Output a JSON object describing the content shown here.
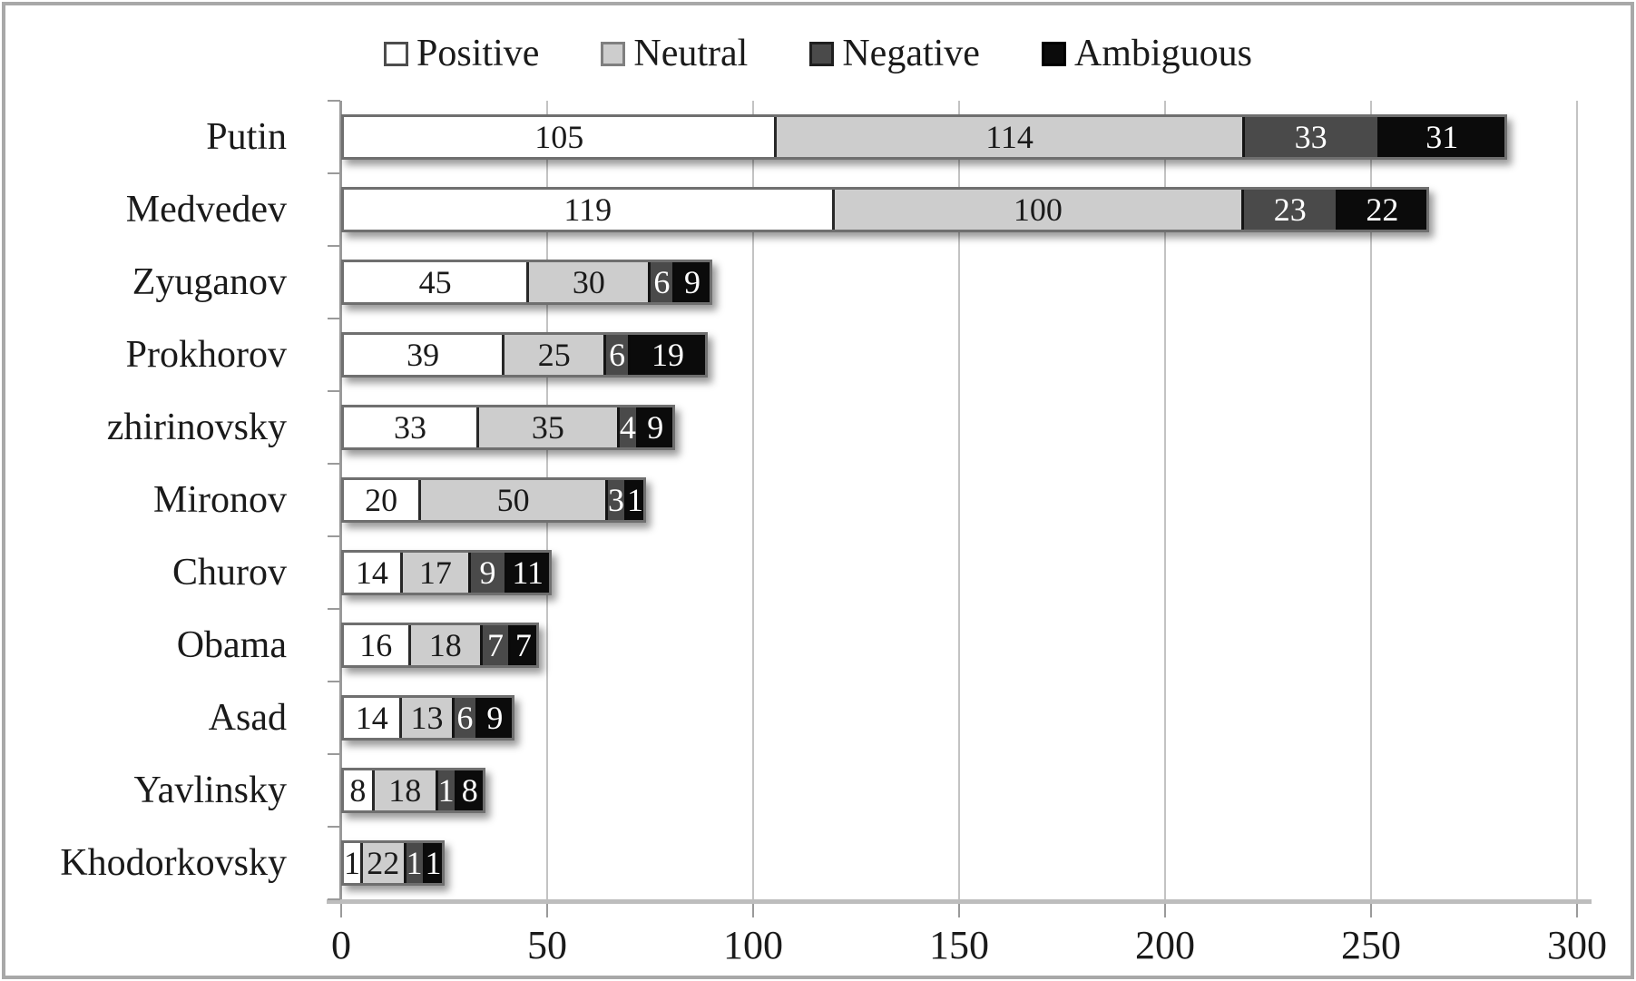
{
  "chart_data": {
    "type": "bar",
    "orientation": "horizontal",
    "stacked": true,
    "title": "",
    "categories": [
      "Putin",
      "Medvedev",
      "Zyuganov",
      "Prokhorov",
      "zhirinovsky",
      "Mironov",
      "Churov",
      "Obama",
      "Asad",
      "Yavlinsky",
      "Khodorkovsky"
    ],
    "series": [
      {
        "name": "Positive",
        "fill": "#ffffff",
        "swatch_border": "#4d4d4d",
        "label_color": "#1a1a1a",
        "values": [
          105,
          119,
          45,
          39,
          33,
          20,
          14,
          16,
          14,
          8,
          1
        ]
      },
      {
        "name": "Neutral",
        "fill": "#cdcdcd",
        "swatch_border": "#7f7f7f",
        "label_color": "#1a1a1a",
        "values": [
          114,
          100,
          30,
          25,
          35,
          50,
          17,
          18,
          13,
          18,
          22
        ]
      },
      {
        "name": "Negative",
        "fill": "#4a4a4a",
        "swatch_border": "#1f1f1f",
        "label_color": "#ffffff",
        "values": [
          33,
          23,
          6,
          6,
          4,
          3,
          9,
          7,
          6,
          1,
          1
        ]
      },
      {
        "name": "Ambiguous",
        "fill": "#0b0b0b",
        "swatch_border": "#000000",
        "label_color": "#ffffff",
        "values": [
          31,
          22,
          9,
          19,
          9,
          1,
          11,
          7,
          9,
          8,
          1
        ]
      }
    ],
    "xlim": [
      0,
      300
    ],
    "x_ticks": [
      0,
      50,
      100,
      150,
      200,
      250,
      300
    ],
    "grid": true,
    "legend_position": "top",
    "colors": {
      "frame_border": "#a8a8a8",
      "gridline": "#c3c3c3",
      "axis": "#9a9a9a",
      "text": "#1a1a1a"
    }
  }
}
